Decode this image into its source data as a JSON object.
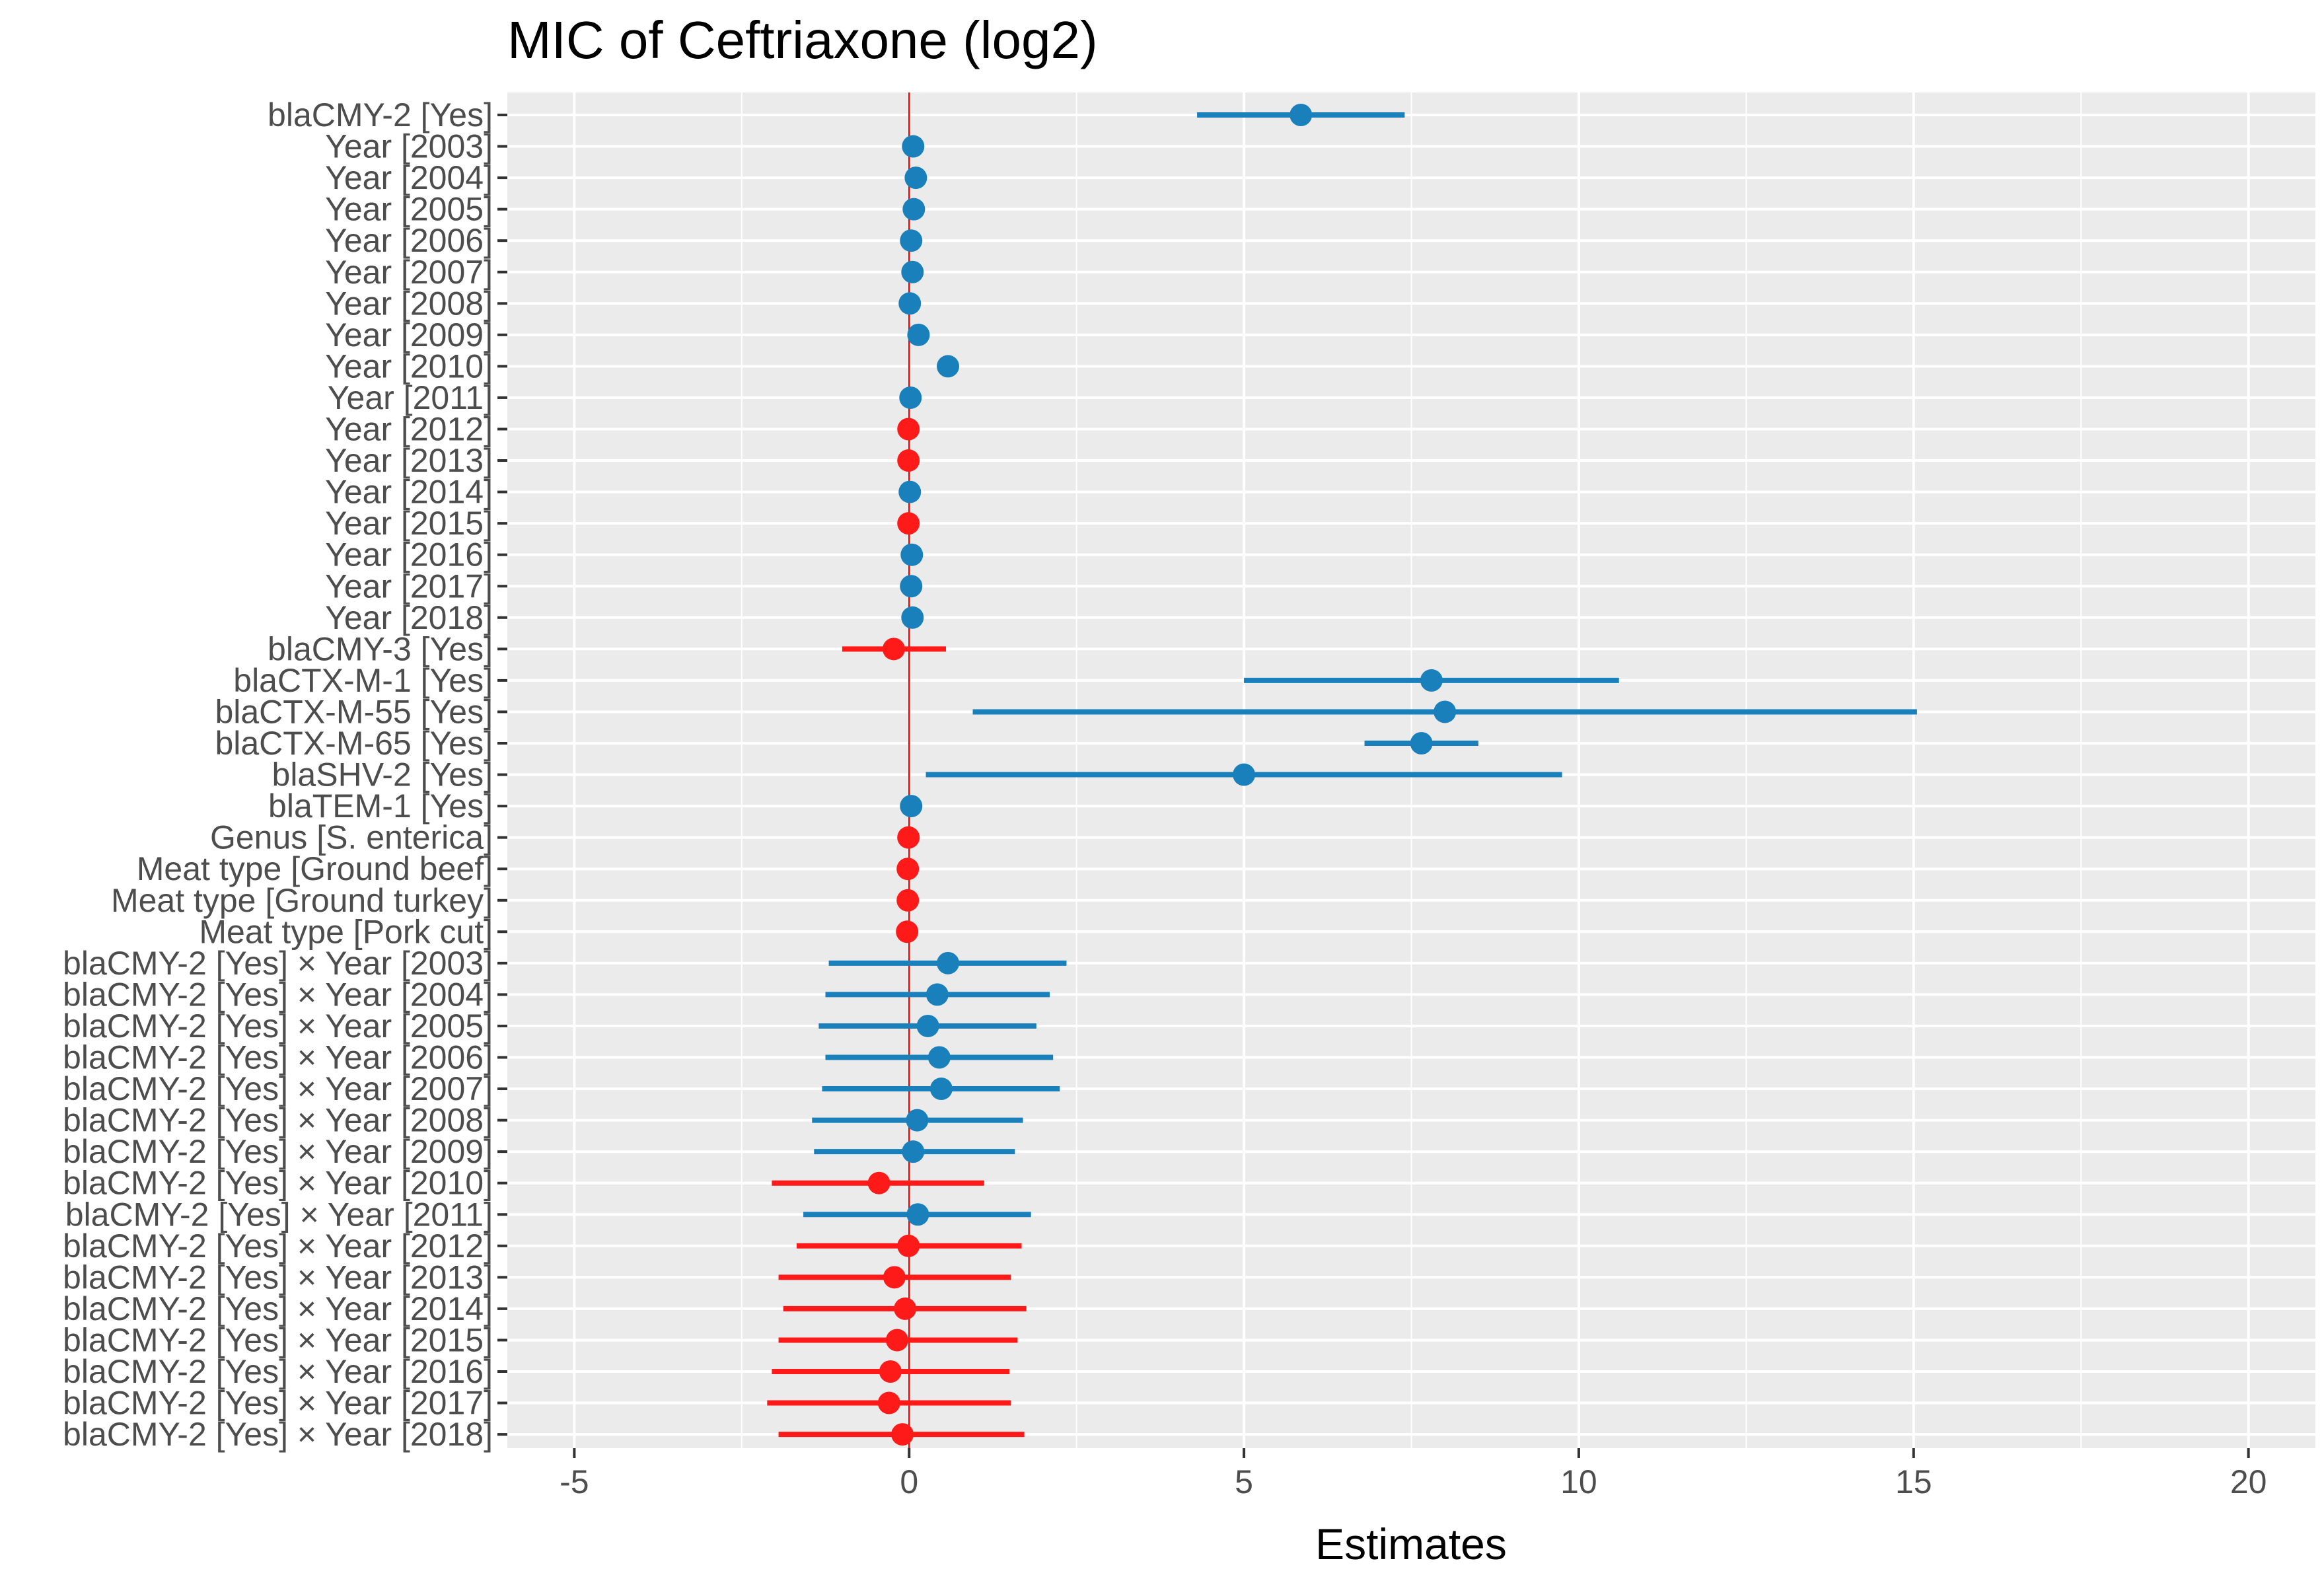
{
  "chart_data": {
    "type": "forest",
    "title": "MIC of Ceftriaxone (log2)",
    "xlabel": "Estimates",
    "ylabel": "",
    "xlim": [
      -6,
      21
    ],
    "xticks": [
      -5,
      0,
      5,
      10,
      15,
      20
    ],
    "xtick_labels": [
      "-5",
      "0",
      "5",
      "10",
      "15",
      "20"
    ],
    "reference_line": 0,
    "grid": true,
    "colors": {
      "positive": "#1a80bb",
      "negative": "#ff1a1a",
      "reference": "#ff0000",
      "panel": "#ebebeb",
      "grid": "#ffffff"
    },
    "terms": [
      {
        "label": "blaCMY-2 [Yes]",
        "estimate": 5.85,
        "low": 4.3,
        "high": 7.4,
        "sign": "positive"
      },
      {
        "label": "Year [2003]",
        "estimate": 0.06,
        "low": null,
        "high": null,
        "sign": "positive"
      },
      {
        "label": "Year [2004]",
        "estimate": 0.1,
        "low": null,
        "high": null,
        "sign": "positive"
      },
      {
        "label": "Year [2005]",
        "estimate": 0.07,
        "low": null,
        "high": null,
        "sign": "positive"
      },
      {
        "label": "Year [2006]",
        "estimate": 0.03,
        "low": null,
        "high": null,
        "sign": "positive"
      },
      {
        "label": "Year [2007]",
        "estimate": 0.05,
        "low": null,
        "high": null,
        "sign": "positive"
      },
      {
        "label": "Year [2008]",
        "estimate": 0.01,
        "low": null,
        "high": null,
        "sign": "positive"
      },
      {
        "label": "Year [2009]",
        "estimate": 0.14,
        "low": null,
        "high": null,
        "sign": "positive"
      },
      {
        "label": "Year [2010]",
        "estimate": 0.58,
        "low": null,
        "high": null,
        "sign": "positive"
      },
      {
        "label": "Year [2011]",
        "estimate": 0.02,
        "low": null,
        "high": null,
        "sign": "positive"
      },
      {
        "label": "Year [2012]",
        "estimate": -0.01,
        "low": null,
        "high": null,
        "sign": "negative"
      },
      {
        "label": "Year [2013]",
        "estimate": -0.01,
        "low": null,
        "high": null,
        "sign": "negative"
      },
      {
        "label": "Year [2014]",
        "estimate": 0.01,
        "low": null,
        "high": null,
        "sign": "positive"
      },
      {
        "label": "Year [2015]",
        "estimate": -0.01,
        "low": null,
        "high": null,
        "sign": "negative"
      },
      {
        "label": "Year [2016]",
        "estimate": 0.04,
        "low": null,
        "high": null,
        "sign": "positive"
      },
      {
        "label": "Year [2017]",
        "estimate": 0.03,
        "low": null,
        "high": null,
        "sign": "positive"
      },
      {
        "label": "Year [2018]",
        "estimate": 0.05,
        "low": null,
        "high": null,
        "sign": "positive"
      },
      {
        "label": "blaCMY-3 [Yes]",
        "estimate": -0.23,
        "low": -1.0,
        "high": 0.55,
        "sign": "negative"
      },
      {
        "label": "blaCTX-M-1 [Yes]",
        "estimate": 7.8,
        "low": 5.0,
        "high": 10.6,
        "sign": "positive"
      },
      {
        "label": "blaCTX-M-55 [Yes]",
        "estimate": 8.0,
        "low": 0.95,
        "high": 15.05,
        "sign": "positive"
      },
      {
        "label": "blaCTX-M-65 [Yes]",
        "estimate": 7.65,
        "low": 6.8,
        "high": 8.5,
        "sign": "positive"
      },
      {
        "label": "blaSHV-2 [Yes]",
        "estimate": 5.0,
        "low": 0.25,
        "high": 9.75,
        "sign": "positive"
      },
      {
        "label": "blaTEM-1 [Yes]",
        "estimate": 0.03,
        "low": null,
        "high": null,
        "sign": "positive"
      },
      {
        "label": "Genus [S. enterica]",
        "estimate": -0.01,
        "low": null,
        "high": null,
        "sign": "negative"
      },
      {
        "label": "Meat type [Ground beef]",
        "estimate": -0.02,
        "low": null,
        "high": null,
        "sign": "negative"
      },
      {
        "label": "Meat type [Ground turkey]",
        "estimate": -0.02,
        "low": null,
        "high": null,
        "sign": "negative"
      },
      {
        "label": "Meat type [Pork cut]",
        "estimate": -0.03,
        "low": null,
        "high": null,
        "sign": "negative"
      },
      {
        "label": "blaCMY-2 [Yes] × Year [2003]",
        "estimate": 0.58,
        "low": -1.2,
        "high": 2.35,
        "sign": "positive"
      },
      {
        "label": "blaCMY-2 [Yes] × Year [2004]",
        "estimate": 0.42,
        "low": -1.25,
        "high": 2.1,
        "sign": "positive"
      },
      {
        "label": "blaCMY-2 [Yes] × Year [2005]",
        "estimate": 0.28,
        "low": -1.35,
        "high": 1.9,
        "sign": "positive"
      },
      {
        "label": "blaCMY-2 [Yes] × Year [2006]",
        "estimate": 0.45,
        "low": -1.25,
        "high": 2.15,
        "sign": "positive"
      },
      {
        "label": "blaCMY-2 [Yes] × Year [2007]",
        "estimate": 0.48,
        "low": -1.3,
        "high": 2.25,
        "sign": "positive"
      },
      {
        "label": "blaCMY-2 [Yes] × Year [2008]",
        "estimate": 0.12,
        "low": -1.45,
        "high": 1.7,
        "sign": "positive"
      },
      {
        "label": "blaCMY-2 [Yes] × Year [2009]",
        "estimate": 0.06,
        "low": -1.42,
        "high": 1.58,
        "sign": "positive"
      },
      {
        "label": "blaCMY-2 [Yes] × Year [2010]",
        "estimate": -0.45,
        "low": -2.05,
        "high": 1.12,
        "sign": "negative"
      },
      {
        "label": "blaCMY-2 [Yes] × Year [2011]",
        "estimate": 0.13,
        "low": -1.58,
        "high": 1.82,
        "sign": "positive"
      },
      {
        "label": "blaCMY-2 [Yes] × Year [2012]",
        "estimate": -0.01,
        "low": -1.68,
        "high": 1.68,
        "sign": "negative"
      },
      {
        "label": "blaCMY-2 [Yes] × Year [2013]",
        "estimate": -0.22,
        "low": -1.95,
        "high": 1.52,
        "sign": "negative"
      },
      {
        "label": "blaCMY-2 [Yes] × Year [2014]",
        "estimate": -0.06,
        "low": -1.88,
        "high": 1.75,
        "sign": "negative"
      },
      {
        "label": "blaCMY-2 [Yes] × Year [2015]",
        "estimate": -0.18,
        "low": -1.95,
        "high": 1.62,
        "sign": "negative"
      },
      {
        "label": "blaCMY-2 [Yes] × Year [2016]",
        "estimate": -0.28,
        "low": -2.05,
        "high": 1.5,
        "sign": "negative"
      },
      {
        "label": "blaCMY-2 [Yes] × Year [2017]",
        "estimate": -0.3,
        "low": -2.12,
        "high": 1.52,
        "sign": "negative"
      },
      {
        "label": "blaCMY-2 [Yes] × Year [2018]",
        "estimate": -0.1,
        "low": -1.95,
        "high": 1.72,
        "sign": "negative"
      }
    ]
  }
}
